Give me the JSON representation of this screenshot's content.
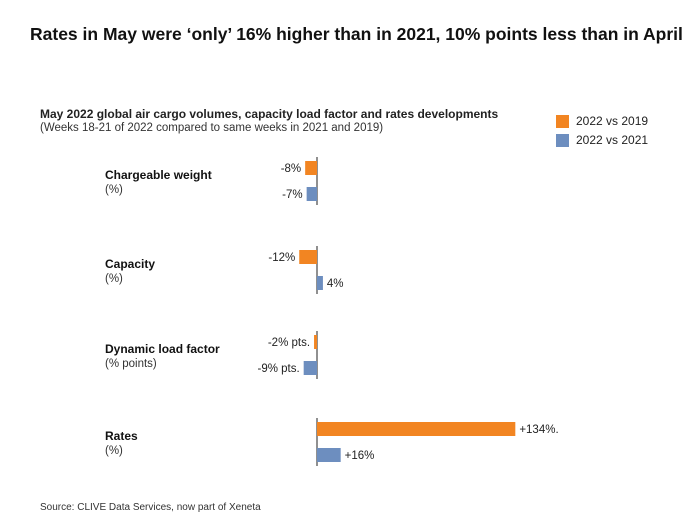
{
  "headline": "Rates in May were ‘only’ 16% higher than in 2021, 10% points less than in April",
  "source": "Source: CLIVE Data Services, now part of Xeneta",
  "chart_data": {
    "type": "bar",
    "orientation": "horizontal",
    "title": "May 2022 global air cargo volumes, capacity load factor and rates developments",
    "subtitle": "(Weeks 18-21 of 2022 compared to same weeks in 2021 and 2019)",
    "legend_position": "top-right",
    "grid": false,
    "colors": {
      "2022 vs 2019": "#f28522",
      "2022 vs 2021": "#6d8ebf",
      "axis": "#222222"
    },
    "categories": [
      {
        "name": "Chargeable weight",
        "unit": "(%)"
      },
      {
        "name": "Capacity",
        "unit": "(%)"
      },
      {
        "name": "Dynamic load factor",
        "unit": "(% points)"
      },
      {
        "name": "Rates",
        "unit": "(%)"
      }
    ],
    "series": [
      {
        "name": "2022 vs 2019",
        "values": [
          -8,
          -12,
          -2,
          134
        ],
        "labels": [
          "-8%",
          "-12%",
          "-2% pts.",
          "+134%."
        ]
      },
      {
        "name": "2022 vs 2021",
        "values": [
          -7,
          4,
          -9,
          16
        ],
        "labels": [
          "-7%",
          "4%",
          "-9% pts.",
          "+16%"
        ]
      }
    ]
  }
}
